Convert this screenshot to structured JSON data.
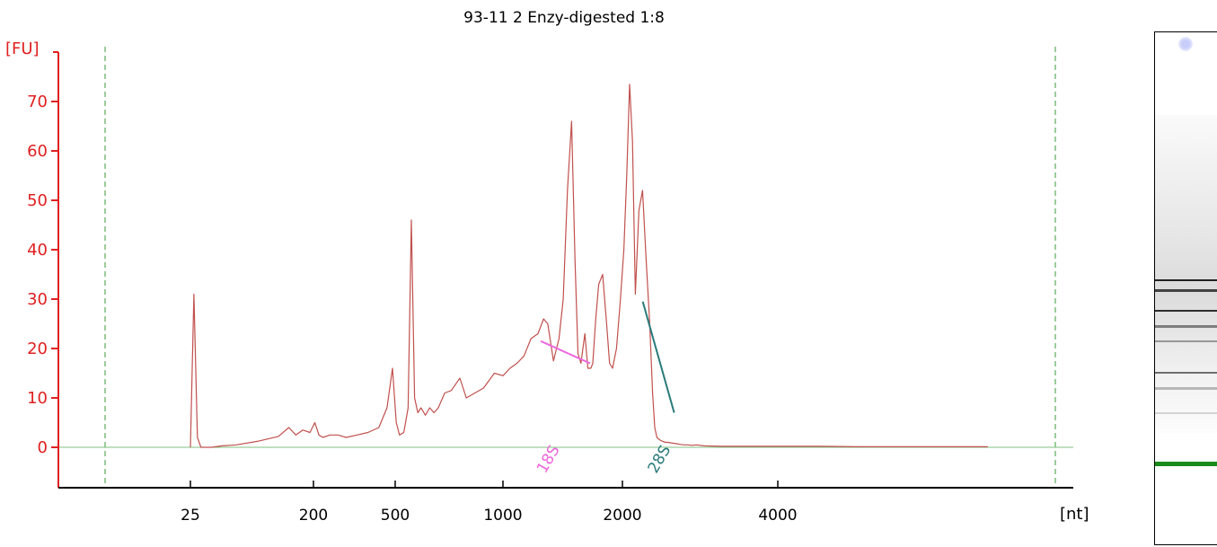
{
  "chart_data": {
    "type": "line",
    "title": "93-11 2 Enzy-digested 1:8",
    "ylabel": "[FU]",
    "xlabel": "[nt]",
    "ylim": [
      -8,
      78
    ],
    "yticks": [
      0,
      10,
      20,
      30,
      40,
      50,
      60,
      70
    ],
    "xticks": [
      "25",
      "200",
      "500",
      "1000",
      "2000",
      "4000"
    ],
    "grid": false,
    "colors": {
      "trace": "#c0504d",
      "axis_y": "#e02020",
      "baseline": "#7fbf7f",
      "marker_18S": "#ee66dd",
      "marker_28S": "#2a7a7a",
      "dashed_markers": "#3a9a3a",
      "gel_marker_band": "#1a8a1a"
    },
    "markers": [
      {
        "label": "18S",
        "at": 1700,
        "from_y": 21.5,
        "to_y": 17
      },
      {
        "label": "28S",
        "at": 2950,
        "from_y": 29.5,
        "to_y": 7
      }
    ],
    "series": [
      {
        "x": [
          25,
          30,
          35,
          40,
          45,
          55,
          70,
          90,
          120,
          150,
          165,
          175,
          185,
          195,
          205,
          220,
          235,
          260,
          290,
          320,
          360,
          400,
          440,
          470,
          490,
          505,
          520,
          540,
          560,
          575,
          590,
          605,
          620,
          640,
          660,
          680,
          700,
          730,
          760,
          800,
          830,
          870,
          910,
          960,
          1000,
          1050,
          1100,
          1150,
          1200,
          1250,
          1290,
          1320,
          1360,
          1400,
          1430,
          1460,
          1490,
          1520,
          1550,
          1580,
          1620,
          1650,
          1680,
          1700,
          1730,
          1760,
          1800,
          1840,
          1870,
          1900,
          1940,
          1980,
          2020,
          2060,
          2100,
          2140,
          2180,
          2230,
          2280,
          2330,
          2380,
          2420,
          2450,
          2480,
          2520,
          2560,
          2600,
          2640,
          2680,
          2720,
          2760,
          2800,
          2850,
          2900,
          2950,
          3000,
          3100,
          3300,
          3600,
          4000,
          4600,
          5200,
          5800,
          6400,
          6700,
          7100
        ],
        "y": [
          0,
          31,
          2,
          0,
          0,
          0,
          0.3,
          0.5,
          1.2,
          2.2,
          4,
          2.5,
          3.5,
          3,
          5,
          2.5,
          2,
          2.5,
          2.5,
          2,
          2.5,
          3,
          4,
          8,
          16,
          5,
          2.5,
          3,
          8,
          46,
          10,
          7,
          8,
          6.5,
          8,
          7,
          8,
          11,
          11.5,
          14,
          10,
          11,
          12,
          15,
          14.5,
          16,
          17,
          18.5,
          22,
          23,
          26,
          25,
          17.5,
          22,
          30,
          52,
          66,
          38,
          19,
          17,
          23,
          16,
          16,
          17,
          26,
          33,
          35,
          25,
          17,
          16,
          20,
          30,
          40,
          55,
          73.5,
          62,
          31,
          48,
          52,
          38,
          25,
          11,
          4,
          2,
          1.5,
          1.2,
          1,
          1,
          0.9,
          0.8,
          0.7,
          0.6,
          0.5,
          0.5,
          0.4,
          0.5,
          0.3,
          0.2,
          0.2,
          0.2,
          0.2,
          0.1,
          0.1,
          0.1,
          0.1,
          0.1
        ]
      }
    ]
  },
  "gel": {
    "bands": [
      {
        "pos": 0.48,
        "thick": 2,
        "darkness": 0.85
      },
      {
        "pos": 0.5,
        "thick": 3,
        "darkness": 0.7
      },
      {
        "pos": 0.54,
        "thick": 2,
        "darkness": 0.8
      },
      {
        "pos": 0.57,
        "thick": 3,
        "darkness": 0.45
      },
      {
        "pos": 0.6,
        "thick": 2,
        "darkness": 0.35
      },
      {
        "pos": 0.66,
        "thick": 2,
        "darkness": 0.55
      },
      {
        "pos": 0.69,
        "thick": 3,
        "darkness": 0.25
      },
      {
        "pos": 0.74,
        "thick": 2,
        "darkness": 0.15
      }
    ]
  }
}
